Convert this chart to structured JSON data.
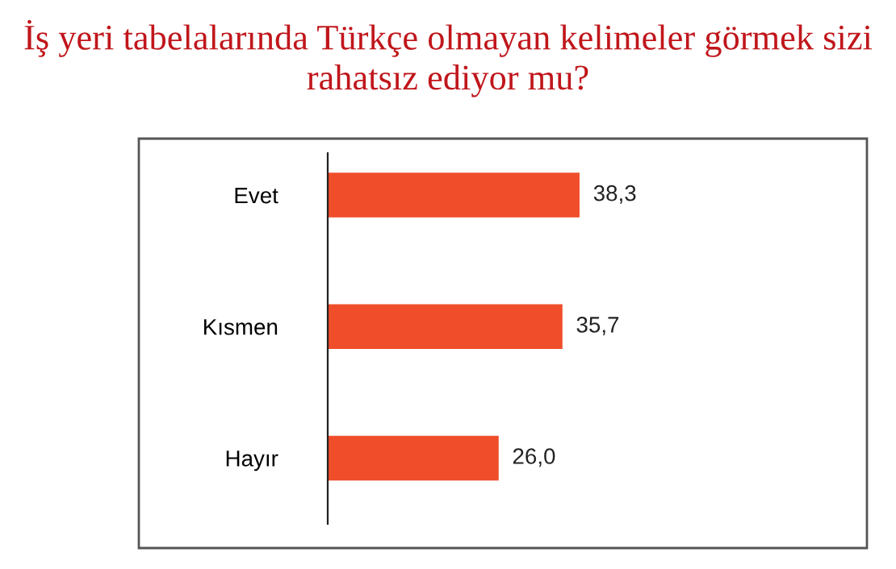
{
  "chart_data": {
    "type": "bar",
    "orientation": "horizontal",
    "title": "İş yeri tabelalarında Türkçe olmayan kelimeler görmek sizi rahatsız ediyor mu?",
    "categories": [
      "Evet",
      "Kısmen",
      "Hayır"
    ],
    "values": [
      38.3,
      35.7,
      26.0
    ],
    "value_labels": [
      "38,3",
      "35,7",
      "26,0"
    ],
    "color": "#f04e2b",
    "tick_labels": "y",
    "grid": false,
    "legend": false
  }
}
